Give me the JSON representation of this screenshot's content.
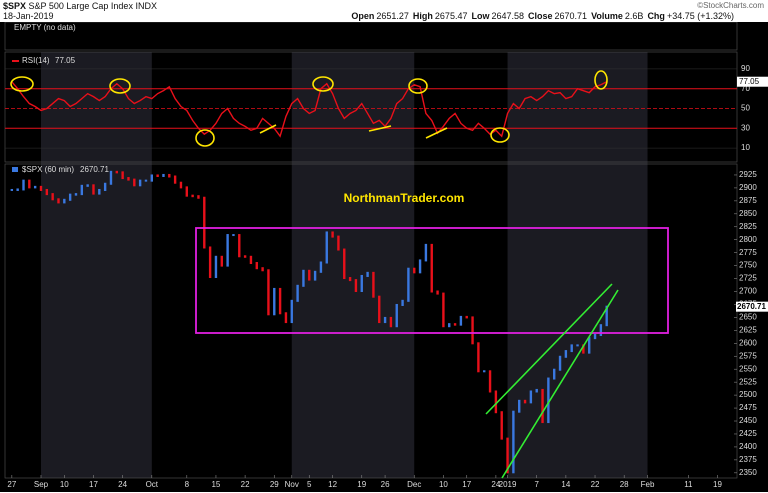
{
  "header": {
    "symbol": "$SPX",
    "name": "S&P 500 Large Cap Index",
    "exchange": "INDX",
    "date": "18-Jan-2019",
    "stats": [
      {
        "label": "Open",
        "value": "2651.27"
      },
      {
        "label": "High",
        "value": "2675.47"
      },
      {
        "label": "Low",
        "value": "2647.58"
      },
      {
        "label": "Close",
        "value": "2670.71"
      },
      {
        "label": "Volume",
        "value": "2.6B"
      },
      {
        "label": "Chg",
        "value": "+34.75 (+1.32%)"
      }
    ],
    "watermark": "©StockCharts.com",
    "empty_panel": "EMPTY (no data)"
  },
  "chart_data": [
    {
      "type": "line",
      "series": [
        {
          "name": "RSI(14)",
          "color": "#e8101a",
          "values": [
            77,
            70,
            62,
            55,
            52,
            48,
            50,
            55,
            60,
            58,
            52,
            55,
            60,
            65,
            62,
            58,
            62,
            70,
            75,
            70,
            60,
            55,
            58,
            62,
            60,
            65,
            68,
            72,
            60,
            52,
            48,
            38,
            30,
            24,
            28,
            35,
            45,
            50,
            40,
            35,
            32,
            28,
            30,
            40,
            35,
            30,
            22,
            42,
            55,
            60,
            50,
            45,
            48,
            70,
            75,
            65,
            50,
            40,
            45,
            48,
            55,
            45,
            35,
            38,
            32,
            40,
            55,
            60,
            70,
            74,
            72,
            45,
            38,
            25,
            32,
            40,
            45,
            35,
            30,
            28,
            35,
            30,
            24,
            28,
            22,
            45,
            55,
            50,
            60,
            62,
            58,
            62,
            68,
            65,
            66,
            60,
            62,
            70,
            68,
            66,
            72,
            74,
            77.05
          ]
        }
      ],
      "xlim": [
        -1,
        124
      ],
      "ylim": [
        0,
        100
      ],
      "yticks": [
        10,
        30,
        50,
        70,
        90
      ]
    },
    {
      "type": "bar",
      "series": [
        {
          "name": "$SPX (60 min)",
          "up_color": "#3a78e0",
          "down_color": "#e8101a",
          "values": [
            2896,
            2897,
            2914,
            2901,
            2902,
            2896,
            2888,
            2878,
            2872,
            2877,
            2887,
            2888,
            2904,
            2905,
            2889,
            2896,
            2908,
            2931,
            2930,
            2919,
            2916,
            2905,
            2914,
            2914,
            2924,
            2923,
            2925,
            2922,
            2910,
            2901,
            2885,
            2884,
            2881,
            2785,
            2728,
            2767,
            2750,
            2809,
            2809,
            2768,
            2767,
            2755,
            2745,
            2741,
            2656,
            2705,
            2658,
            2641,
            2682,
            2711,
            2740,
            2723,
            2738,
            2756,
            2814,
            2806,
            2781,
            2726,
            2722,
            2701,
            2730,
            2736,
            2690,
            2641,
            2649,
            2633,
            2674,
            2682,
            2744,
            2737,
            2760,
            2790,
            2700,
            2696,
            2633,
            2637,
            2636,
            2651,
            2650,
            2600,
            2546,
            2546,
            2507,
            2467,
            2416,
            2351,
            2468,
            2489,
            2486,
            2507,
            2510,
            2448,
            2532,
            2549,
            2574,
            2585,
            2596,
            2596,
            2582,
            2610,
            2616,
            2635,
            2670.71
          ]
        }
      ],
      "annotation": "NorthmanTrader.com",
      "xlim": [
        -1,
        124
      ],
      "ylim": [
        2340,
        2950
      ],
      "yticks": [
        2350,
        2375,
        2400,
        2425,
        2450,
        2475,
        2500,
        2525,
        2550,
        2575,
        2600,
        2625,
        2650,
        2675,
        2700,
        2725,
        2750,
        2775,
        2800,
        2825,
        2850,
        2875,
        2900,
        2925
      ],
      "xticks": [
        {
          "value": 0,
          "label": "27"
        },
        {
          "value": 5,
          "label": "Sep"
        },
        {
          "value": 9,
          "label": "10"
        },
        {
          "value": 14,
          "label": "17"
        },
        {
          "value": 19,
          "label": "24"
        },
        {
          "value": 24,
          "label": "Oct"
        },
        {
          "value": 30,
          "label": "8"
        },
        {
          "value": 35,
          "label": "15"
        },
        {
          "value": 40,
          "label": "22"
        },
        {
          "value": 45,
          "label": "29"
        },
        {
          "value": 48,
          "label": "Nov"
        },
        {
          "value": 51,
          "label": "5"
        },
        {
          "value": 55,
          "label": "12"
        },
        {
          "value": 60,
          "label": "19"
        },
        {
          "value": 64,
          "label": "26"
        },
        {
          "value": 69,
          "label": "Dec"
        },
        {
          "value": 74,
          "label": "10"
        },
        {
          "value": 78,
          "label": "17"
        },
        {
          "value": 83,
          "label": "24"
        },
        {
          "value": 85,
          "label": "2019"
        },
        {
          "value": 90,
          "label": "7"
        },
        {
          "value": 95,
          "label": "14"
        },
        {
          "value": 100,
          "label": "22"
        },
        {
          "value": 105,
          "label": "28"
        },
        {
          "value": 109,
          "label": "Feb"
        },
        {
          "value": 116,
          "label": "11"
        },
        {
          "value": 121,
          "label": "19"
        }
      ]
    }
  ]
}
